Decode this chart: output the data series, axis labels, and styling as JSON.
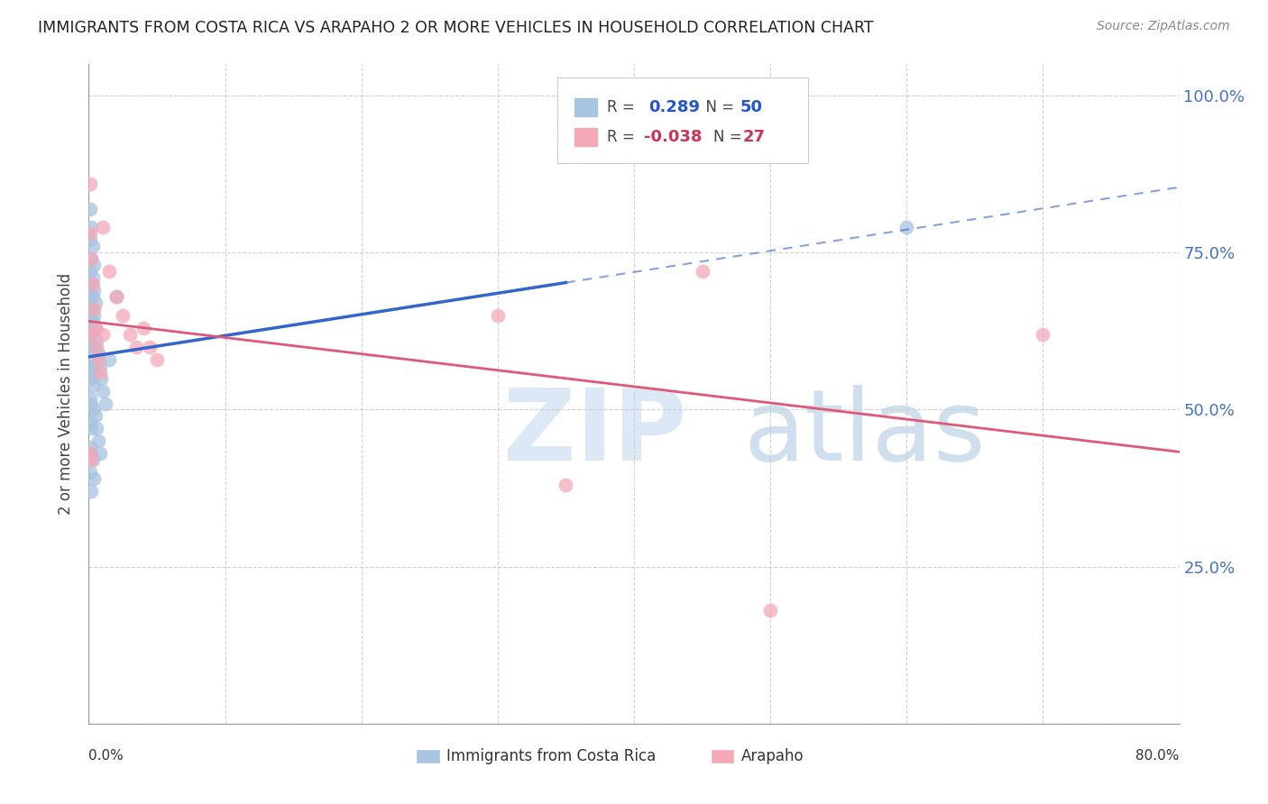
{
  "title": "IMMIGRANTS FROM COSTA RICA VS ARAPAHO 2 OR MORE VEHICLES IN HOUSEHOLD CORRELATION CHART",
  "source": "Source: ZipAtlas.com",
  "ylabel": "2 or more Vehicles in Household",
  "yticks": [
    0.0,
    0.25,
    0.5,
    0.75,
    1.0
  ],
  "ytick_labels": [
    "",
    "25.0%",
    "50.0%",
    "75.0%",
    "100.0%"
  ],
  "xlim": [
    0.0,
    0.8
  ],
  "ylim": [
    0.0,
    1.05
  ],
  "legend_blue_r": "0.289",
  "legend_blue_n": "50",
  "legend_pink_r": "-0.038",
  "legend_pink_n": "27",
  "blue_color": "#a8c4e0",
  "pink_color": "#f4a8b8",
  "blue_line_color": "#3366cc",
  "pink_line_color": "#e05878",
  "blue_scatter": [
    [
      0.001,
      0.82
    ],
    [
      0.002,
      0.79
    ],
    [
      0.003,
      0.76
    ],
    [
      0.004,
      0.73
    ],
    [
      0.001,
      0.77
    ],
    [
      0.002,
      0.74
    ],
    [
      0.003,
      0.71
    ],
    [
      0.004,
      0.69
    ],
    [
      0.001,
      0.72
    ],
    [
      0.002,
      0.7
    ],
    [
      0.003,
      0.68
    ],
    [
      0.004,
      0.65
    ],
    [
      0.001,
      0.68
    ],
    [
      0.002,
      0.66
    ],
    [
      0.003,
      0.64
    ],
    [
      0.005,
      0.67
    ],
    [
      0.001,
      0.64
    ],
    [
      0.002,
      0.62
    ],
    [
      0.003,
      0.6
    ],
    [
      0.005,
      0.63
    ],
    [
      0.001,
      0.6
    ],
    [
      0.002,
      0.58
    ],
    [
      0.003,
      0.57
    ],
    [
      0.006,
      0.61
    ],
    [
      0.001,
      0.56
    ],
    [
      0.002,
      0.55
    ],
    [
      0.004,
      0.54
    ],
    [
      0.007,
      0.59
    ],
    [
      0.001,
      0.52
    ],
    [
      0.002,
      0.51
    ],
    [
      0.004,
      0.5
    ],
    [
      0.008,
      0.57
    ],
    [
      0.001,
      0.48
    ],
    [
      0.002,
      0.47
    ],
    [
      0.005,
      0.49
    ],
    [
      0.009,
      0.55
    ],
    [
      0.001,
      0.44
    ],
    [
      0.002,
      0.43
    ],
    [
      0.006,
      0.47
    ],
    [
      0.01,
      0.53
    ],
    [
      0.001,
      0.4
    ],
    [
      0.003,
      0.42
    ],
    [
      0.007,
      0.45
    ],
    [
      0.012,
      0.51
    ],
    [
      0.002,
      0.37
    ],
    [
      0.004,
      0.39
    ],
    [
      0.008,
      0.43
    ],
    [
      0.015,
      0.58
    ],
    [
      0.02,
      0.68
    ],
    [
      0.6,
      0.79
    ]
  ],
  "pink_scatter": [
    [
      0.001,
      0.86
    ],
    [
      0.01,
      0.79
    ],
    [
      0.001,
      0.78
    ],
    [
      0.015,
      0.72
    ],
    [
      0.002,
      0.74
    ],
    [
      0.02,
      0.68
    ],
    [
      0.003,
      0.7
    ],
    [
      0.025,
      0.65
    ],
    [
      0.004,
      0.66
    ],
    [
      0.03,
      0.62
    ],
    [
      0.005,
      0.63
    ],
    [
      0.035,
      0.6
    ],
    [
      0.006,
      0.6
    ],
    [
      0.04,
      0.63
    ],
    [
      0.007,
      0.58
    ],
    [
      0.045,
      0.6
    ],
    [
      0.008,
      0.56
    ],
    [
      0.05,
      0.58
    ],
    [
      0.001,
      0.62
    ],
    [
      0.3,
      0.65
    ],
    [
      0.001,
      0.43
    ],
    [
      0.45,
      0.72
    ],
    [
      0.002,
      0.42
    ],
    [
      0.35,
      0.38
    ],
    [
      0.5,
      0.18
    ],
    [
      0.01,
      0.62
    ],
    [
      0.7,
      0.62
    ]
  ]
}
